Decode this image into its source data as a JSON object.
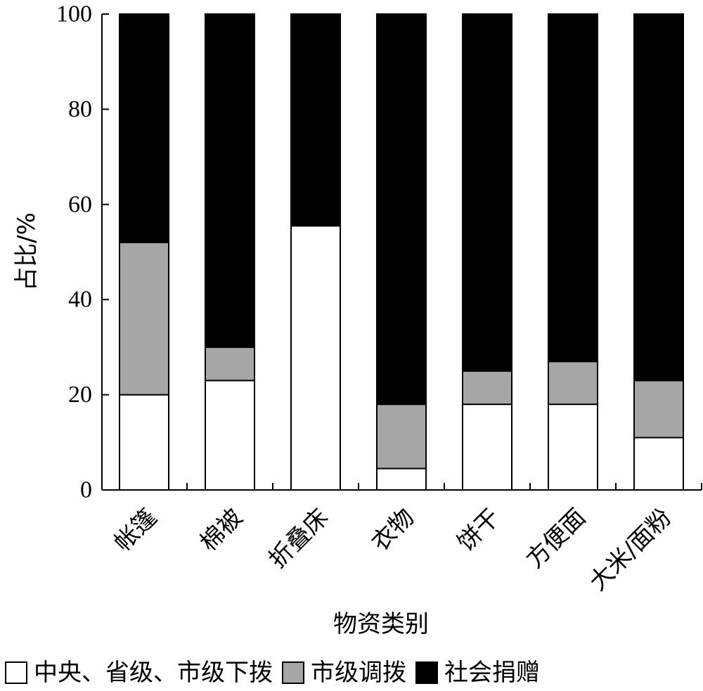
{
  "chart_data": {
    "type": "bar",
    "stacked": true,
    "categories": [
      "帐篷",
      "棉被",
      "折叠床",
      "衣物",
      "饼干",
      "方便面",
      "大米/面粉"
    ],
    "series": [
      {
        "name": "中央、省级、市级下拨",
        "color": "#ffffff",
        "values": [
          20,
          23,
          55.5,
          4.5,
          18,
          18,
          11
        ]
      },
      {
        "name": "市级调拨",
        "color": "#a6a6a6",
        "values": [
          32,
          7,
          0,
          13.5,
          7,
          9,
          12
        ]
      },
      {
        "name": "社会捐赠",
        "color": "#000000",
        "values": [
          48,
          70,
          44.5,
          82,
          75,
          73,
          77
        ]
      }
    ],
    "xlabel": "物资类别",
    "ylabel": "占比/%",
    "ylim": [
      0,
      100
    ],
    "yticks": [
      0,
      20,
      40,
      60,
      80,
      100
    ],
    "legend_position": "bottom",
    "grid": false
  }
}
